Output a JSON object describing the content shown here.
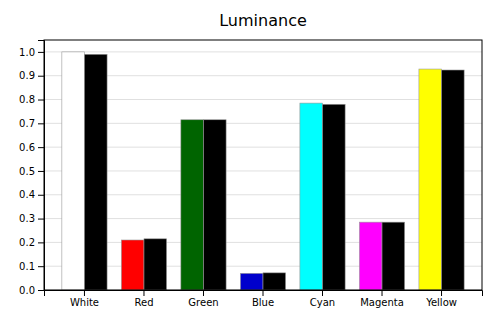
{
  "chart_data": {
    "type": "bar",
    "title": "Luminance",
    "categories": [
      "White",
      "Red",
      "Green",
      "Blue",
      "Cyan",
      "Magenta",
      "Yellow"
    ],
    "series": [
      {
        "colors": [
          "#ffffff",
          "#ff0000",
          "#006400",
          "#0000cc",
          "#00ffff",
          "#ff00ff",
          "#ffff00"
        ],
        "values": [
          1.0,
          0.21,
          0.715,
          0.07,
          0.785,
          0.285,
          0.928
        ]
      },
      {
        "color": "#000000",
        "values": [
          0.99,
          0.215,
          0.715,
          0.072,
          0.78,
          0.285,
          0.924
        ]
      }
    ],
    "ylim": [
      0.0,
      1.05
    ],
    "yticks": [
      {
        "value": 0.0,
        "label": "0.0"
      },
      0.1,
      0.2,
      0.3,
      0.4,
      0.5,
      0.6,
      0.7,
      0.8,
      0.9,
      {
        "value": 1.0,
        "label": "1.0"
      }
    ],
    "grid": true
  }
}
